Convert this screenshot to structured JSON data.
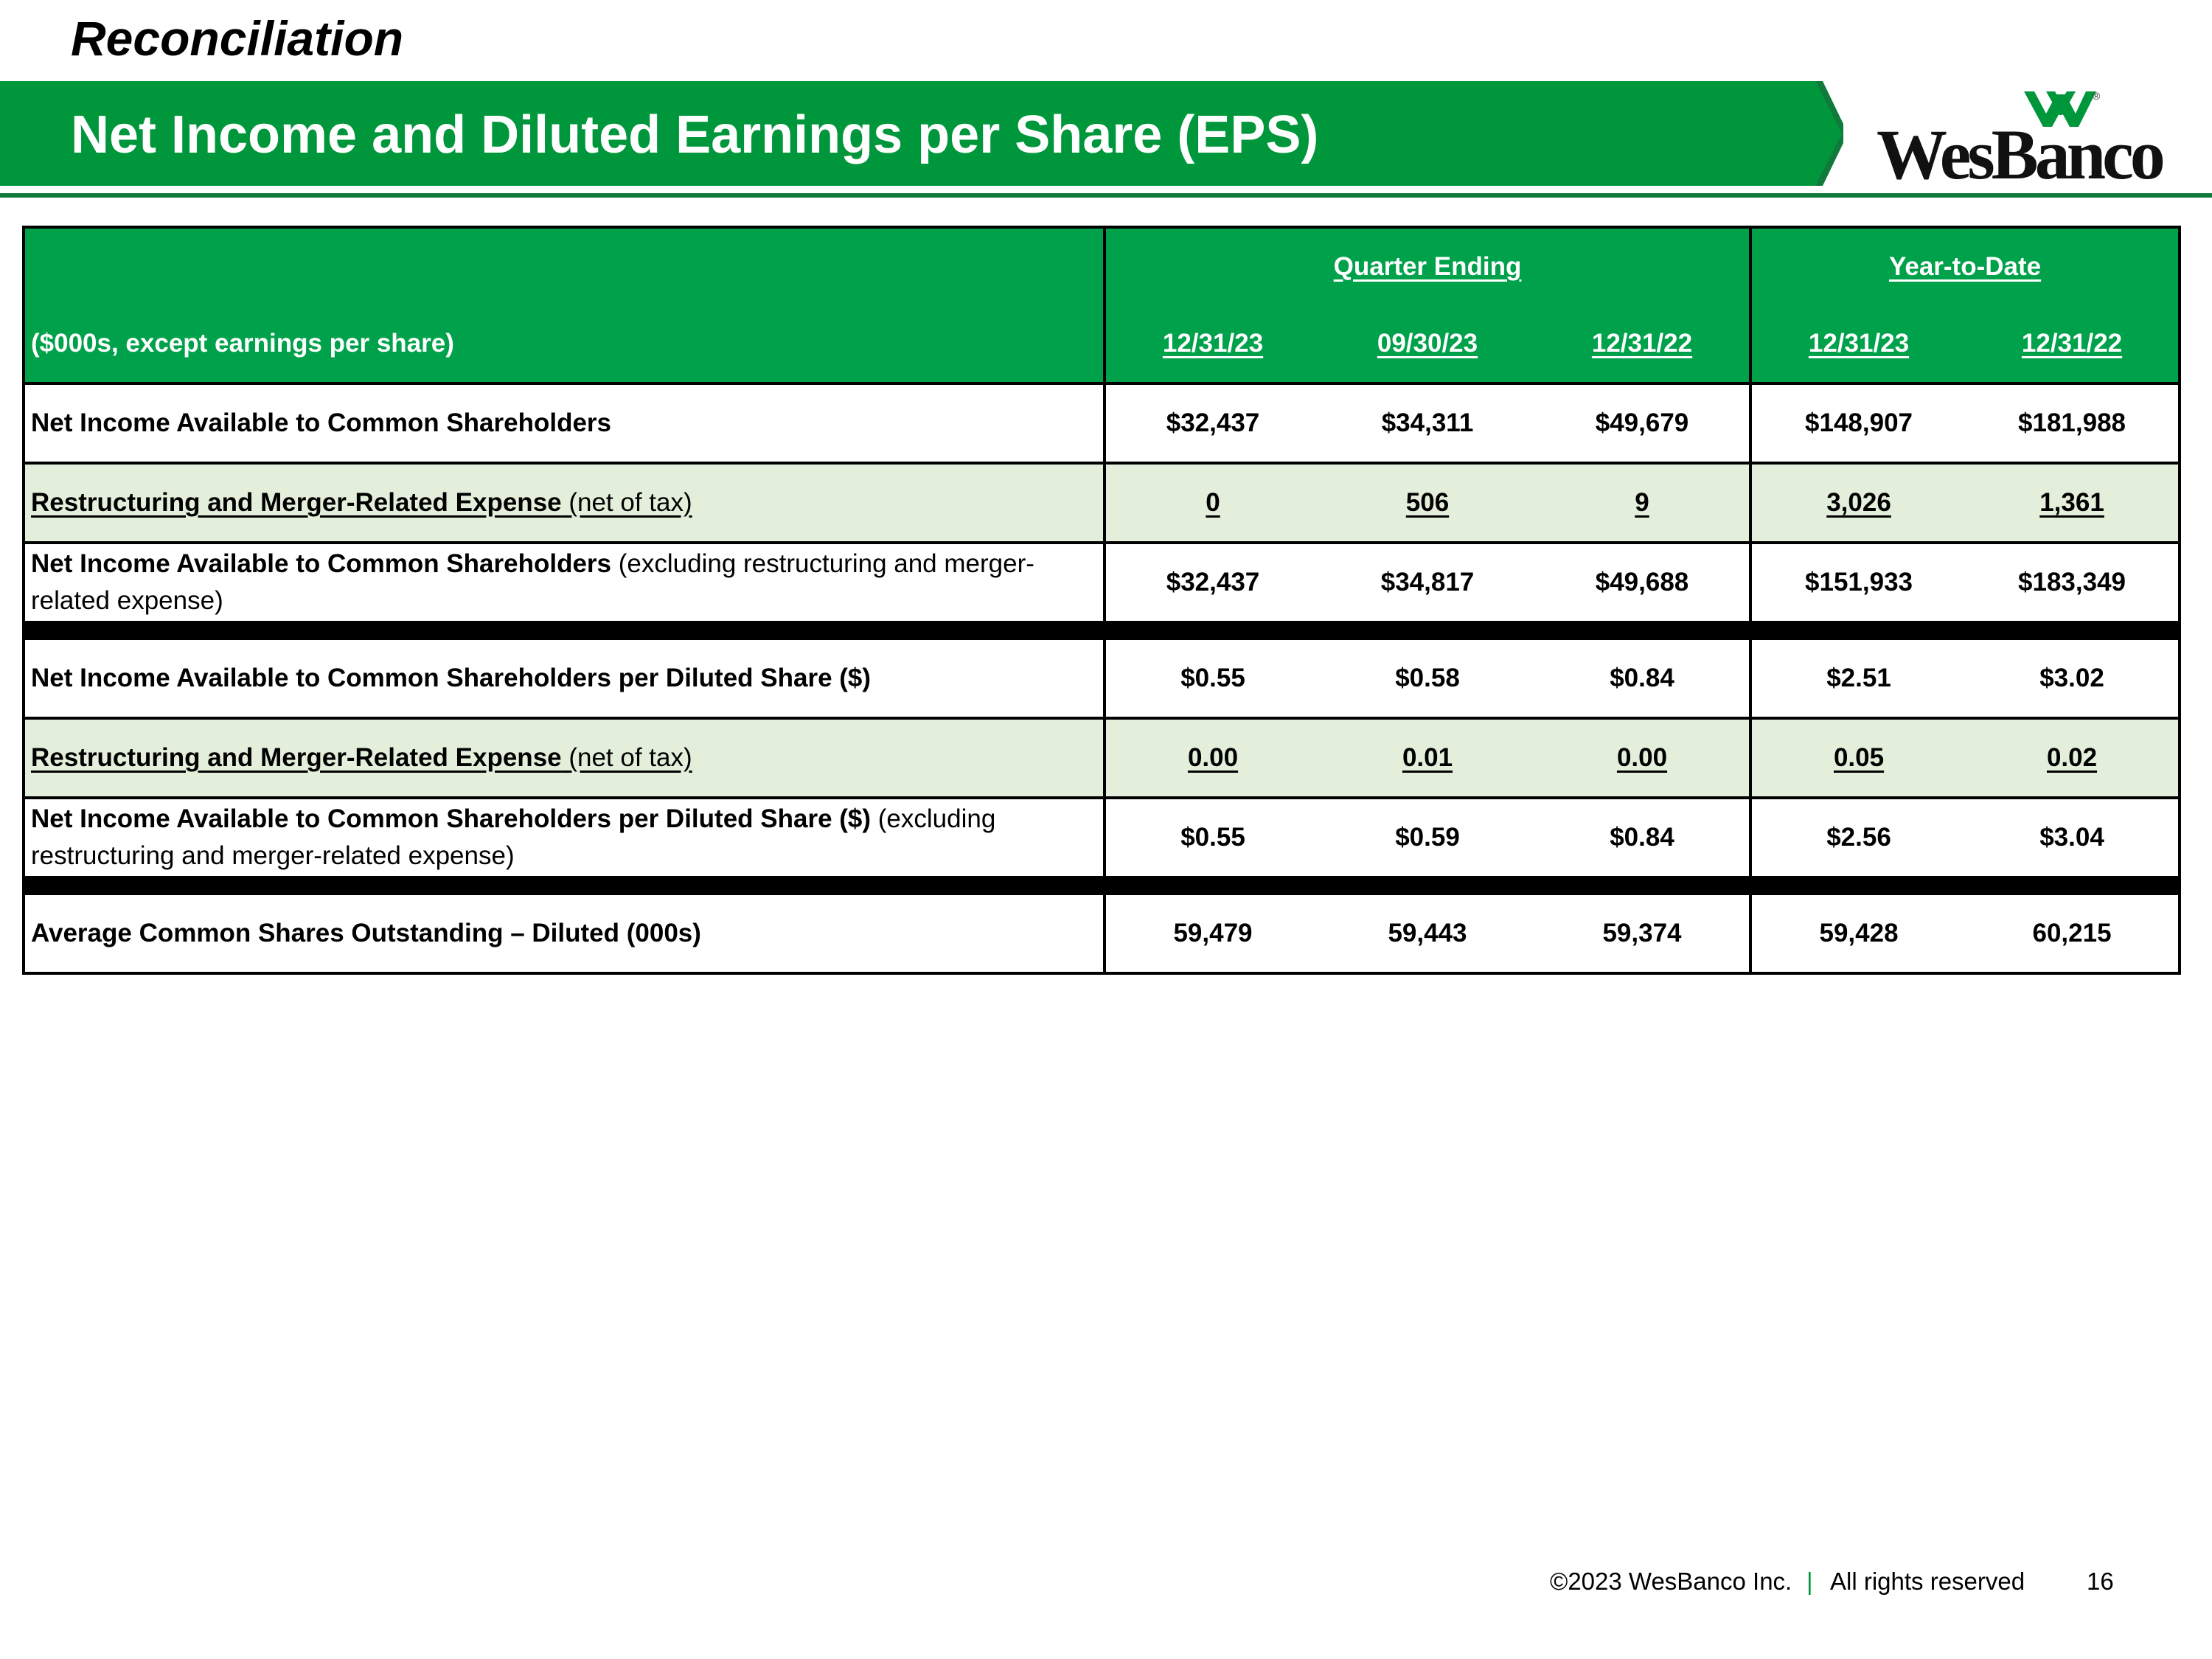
{
  "header": {
    "kicker": "Reconciliation",
    "title": "Net Income and Diluted Earnings per Share (EPS)",
    "logo_text": "WesBanco",
    "logo_reg": "®"
  },
  "table": {
    "unit_label": "($000s, except earnings per share)",
    "groups": {
      "quarter": "Quarter Ending",
      "ytd": "Year-to-Date"
    },
    "columns": [
      "12/31/23",
      "09/30/23",
      "12/31/22",
      "12/31/23",
      "12/31/22"
    ],
    "rows": [
      {
        "label_bold": "Net Income Available to Common Shareholders",
        "label_plain": "",
        "values": [
          "$32,437",
          "$34,311",
          "$49,679",
          "$148,907",
          "$181,988"
        ]
      },
      {
        "label_bold": "Restructuring and Merger-Related Expense",
        "label_plain": " (net of tax)",
        "values": [
          "0",
          "506",
          "9",
          "3,026",
          "1,361"
        ]
      },
      {
        "label_bold": "Net Income Available to Common Shareholders",
        "label_plain": " (excluding restructuring and merger-related expense)",
        "values": [
          "$32,437",
          "$34,817",
          "$49,688",
          "$151,933",
          "$183,349"
        ]
      },
      {
        "label_bold": "Net Income Available to Common Shareholders per Diluted Share ($)",
        "label_plain": "",
        "values": [
          "$0.55",
          "$0.58",
          "$0.84",
          "$2.51",
          "$3.02"
        ]
      },
      {
        "label_bold": "Restructuring and Merger-Related Expense",
        "label_plain": " (net of tax)",
        "values": [
          "0.00",
          "0.01",
          "0.00",
          "0.05",
          "0.02"
        ]
      },
      {
        "label_bold": "Net Income Available to Common Shareholders per Diluted Share ($)",
        "label_plain": " (excluding restructuring and merger-related expense)",
        "values": [
          "$0.55",
          "$0.59",
          "$0.84",
          "$2.56",
          "$3.04"
        ]
      },
      {
        "label_bold": "Average Common Shares Outstanding – Diluted (000s)",
        "label_plain": "",
        "values": [
          "59,479",
          "59,443",
          "59,374",
          "59,428",
          "60,215"
        ]
      }
    ]
  },
  "footer": {
    "copyright": "©2023 WesBanco Inc.",
    "separator": "|",
    "rights": "All rights reserved",
    "page": "16"
  },
  "colors": {
    "brand_green": "#00973c",
    "header_green": "#00a14b",
    "shade": "#e3efdb"
  }
}
